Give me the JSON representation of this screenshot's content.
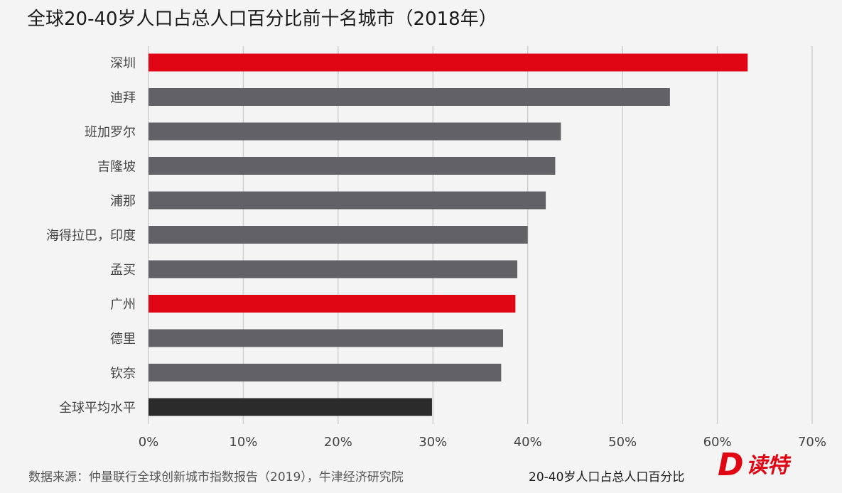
{
  "title": "全球20-40岁人口占总人口百分比前十名城市（2018年）",
  "source": "数据来源：仲量联行全球创新城市指数报告（2019），牛津经济研究院",
  "logo": {
    "text": "读特",
    "mark": "D"
  },
  "colors": {
    "highlight": "#e00613",
    "default": "#626166",
    "average": "#2b2b2b",
    "grid": "#cfcfcf",
    "background": "#f4f4f4"
  },
  "chart_data": {
    "type": "bar",
    "orientation": "horizontal",
    "categories": [
      "深圳",
      "迪拜",
      "班加罗尔",
      "吉隆坡",
      "浦那",
      "海得拉巴，印度",
      "孟买",
      "广州",
      "德里",
      "钦奈",
      "全球平均水平"
    ],
    "values": [
      63.2,
      55.0,
      43.5,
      42.9,
      41.9,
      40.0,
      38.9,
      38.7,
      37.4,
      37.2,
      29.9
    ],
    "bar_colors": [
      "highlight",
      "default",
      "default",
      "default",
      "default",
      "default",
      "default",
      "highlight",
      "default",
      "default",
      "average"
    ],
    "xlabel": "20-40岁人口占总人口百分比",
    "ylabel": "",
    "xlim": [
      0,
      70
    ],
    "xticks": [
      "0%",
      "10%",
      "20%",
      "30%",
      "40%",
      "50%",
      "60%",
      "70%"
    ],
    "grid": true
  }
}
